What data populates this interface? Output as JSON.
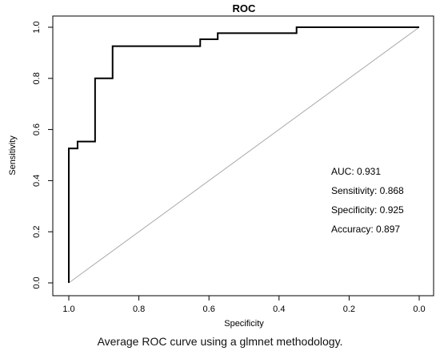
{
  "chart_data": {
    "type": "line",
    "title": "ROC",
    "xlabel": "Specificity",
    "ylabel": "Sensitivity",
    "x_reversed": true,
    "xlim": [
      1.0,
      0.0
    ],
    "ylim": [
      0.0,
      1.0
    ],
    "x_ticks": [
      "1.0",
      "0.8",
      "0.6",
      "0.4",
      "0.2",
      "0.0"
    ],
    "y_ticks": [
      "0.0",
      "0.2",
      "0.4",
      "0.6",
      "0.8",
      "1.0"
    ],
    "grid": false,
    "series": [
      {
        "color": "#000000",
        "specificity": [
          1.0,
          1.0,
          0.975,
          0.975,
          0.95,
          0.95,
          0.925,
          0.925,
          0.875,
          0.875,
          0.625,
          0.625,
          0.575,
          0.575,
          0.35,
          0.35,
          0.0
        ],
        "sensitivity": [
          0.0,
          0.526,
          0.526,
          0.553,
          0.553,
          0.553,
          0.553,
          0.8,
          0.8,
          0.926,
          0.926,
          0.953,
          0.953,
          0.977,
          0.977,
          1.0,
          1.0
        ]
      },
      {
        "color": "#aaaaaa",
        "specificity": [
          1.0,
          0.0
        ],
        "sensitivity": [
          0.0,
          1.0
        ]
      }
    ],
    "annotations": [
      "AUC: 0.931",
      "Sensitivity: 0.868",
      "Specificity: 0.925",
      "Accuracy: 0.897"
    ]
  },
  "caption": "Average ROC curve using a glmnet methodology."
}
